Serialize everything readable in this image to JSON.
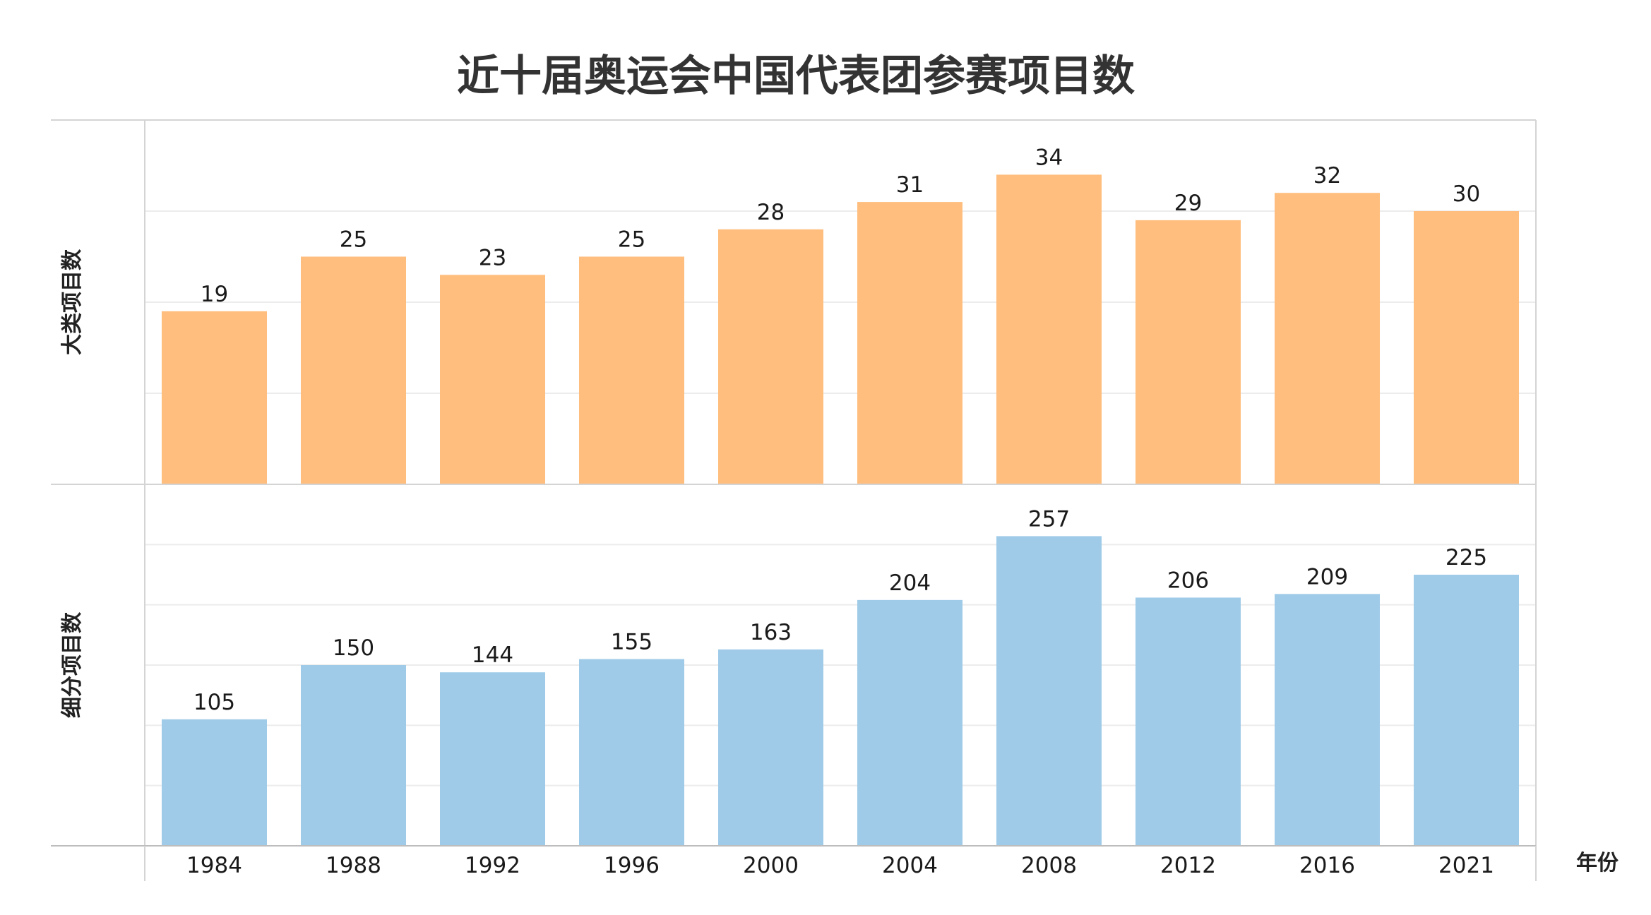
{
  "chart_data": {
    "type": "bar",
    "title": "近十届奥运会中国代表团参赛项目数",
    "xlabel": "年份",
    "categories": [
      "1984",
      "1988",
      "1992",
      "1996",
      "2000",
      "2004",
      "2008",
      "2012",
      "2016",
      "2021"
    ],
    "panels": [
      {
        "ylabel": "大类项目数",
        "values": [
          19,
          25,
          23,
          25,
          28,
          31,
          34,
          29,
          32,
          30
        ],
        "ylim": [
          0,
          40
        ],
        "gridlines": [
          10,
          20,
          30
        ],
        "color": "#FFBE7D"
      },
      {
        "ylabel": "细分项目数",
        "values": [
          105,
          150,
          144,
          155,
          163,
          204,
          257,
          206,
          209,
          225
        ],
        "ylim": [
          0,
          300
        ],
        "gridlines": [
          50,
          100,
          150,
          200,
          250
        ],
        "color": "#A0CBE8"
      }
    ],
    "grid": true,
    "legend": "none"
  }
}
